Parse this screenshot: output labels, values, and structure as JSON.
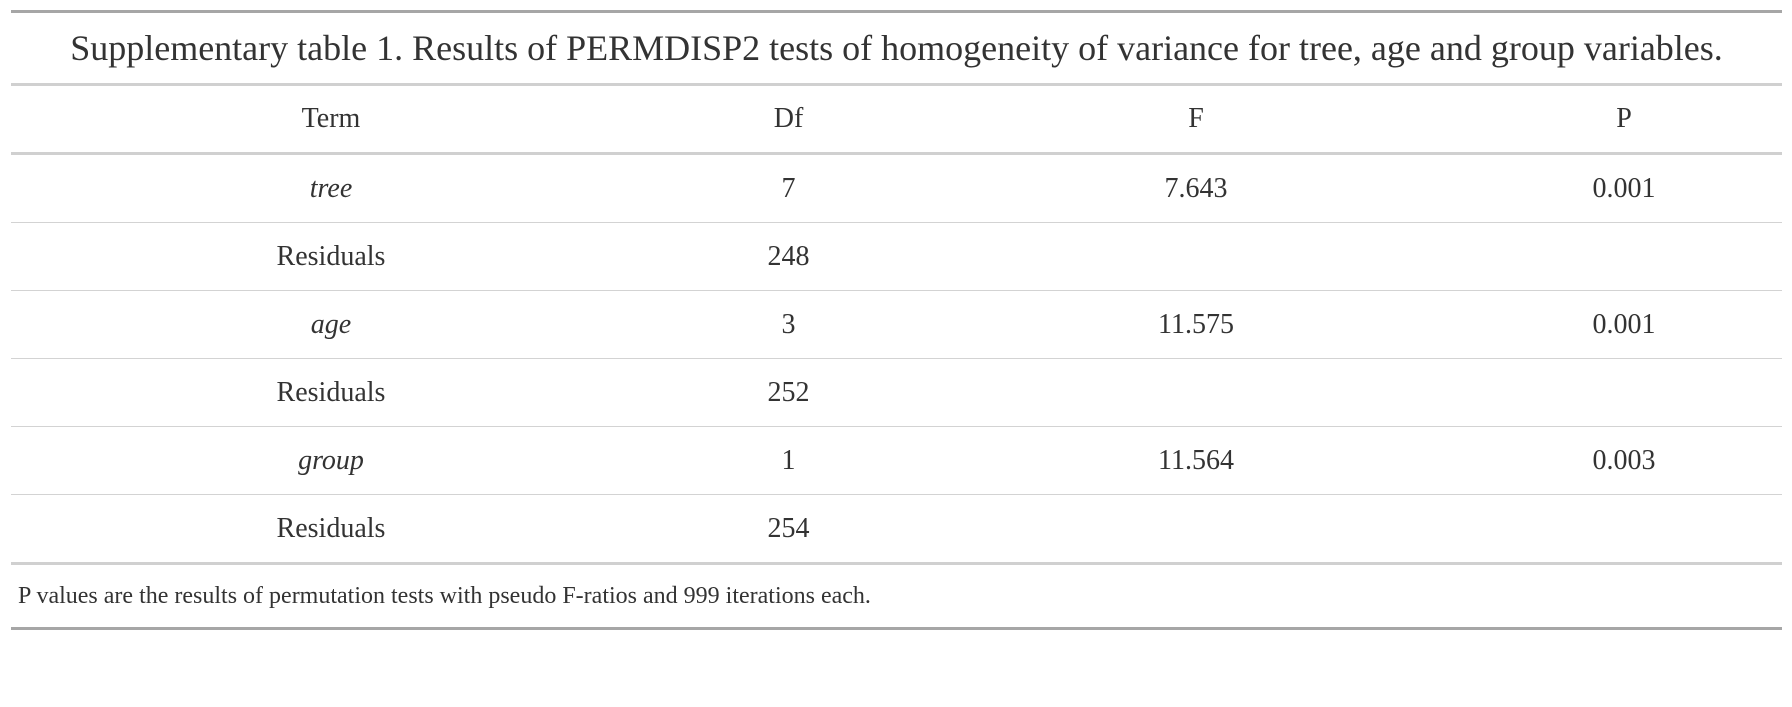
{
  "caption": "Supplementary table 1. Results of PERMDISP2 tests of homogeneity of variance for tree, age and group variables.",
  "columns": [
    "Term",
    "Df",
    "F",
    "P"
  ],
  "rows": [
    {
      "term": "tree",
      "df": "7",
      "f": "7.643",
      "p": "0.001"
    },
    {
      "term": "Residuals",
      "df": "248",
      "f": "",
      "p": ""
    },
    {
      "term": "age",
      "df": "3",
      "f": "11.575",
      "p": "0.001"
    },
    {
      "term": "Residuals",
      "df": "252",
      "f": "",
      "p": ""
    },
    {
      "term": "group",
      "df": "1",
      "f": "11.564",
      "p": "0.003"
    },
    {
      "term": "Residuals",
      "df": "254",
      "f": "",
      "p": ""
    }
  ],
  "footnote": "P values are the results of permutation tests with pseudo F-ratios and 999 iterations each."
}
